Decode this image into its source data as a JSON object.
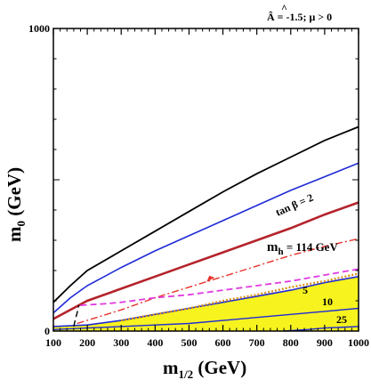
{
  "chart_data": {
    "type": "line",
    "title": "Â = -1.5; μ > 0",
    "title_hat": "^",
    "xlabel_main": "m",
    "xlabel_sub": "1/2",
    "xlabel_unit": " (GeV)",
    "ylabel_main": "m",
    "ylabel_sub": "0",
    "ylabel_unit": " (GeV)",
    "xlim": [
      100,
      1000
    ],
    "ylim": [
      0,
      1000
    ],
    "x_ticks": [
      "100",
      "200",
      "300",
      "400",
      "500",
      "600",
      "700",
      "800",
      "900",
      "1000"
    ],
    "y_ticks": [
      "0",
      "1000"
    ],
    "grid": false,
    "series": [
      {
        "color": "#000000",
        "style": "solid",
        "width": 1.8,
        "points": [
          [
            100,
            95
          ],
          [
            150,
            150
          ],
          [
            200,
            200
          ],
          [
            300,
            265
          ],
          [
            400,
            330
          ],
          [
            500,
            395
          ],
          [
            600,
            460
          ],
          [
            700,
            520
          ],
          [
            800,
            575
          ],
          [
            900,
            630
          ],
          [
            1000,
            675
          ]
        ]
      },
      {
        "color": "#1f2bd6",
        "style": "solid",
        "width": 1.6,
        "points": [
          [
            100,
            60
          ],
          [
            150,
            110
          ],
          [
            200,
            150
          ],
          [
            300,
            210
          ],
          [
            400,
            265
          ],
          [
            500,
            315
          ],
          [
            600,
            365
          ],
          [
            700,
            415
          ],
          [
            800,
            465
          ],
          [
            900,
            510
          ],
          [
            1000,
            555
          ]
        ]
      },
      {
        "color": "#b5232b",
        "style": "solid",
        "width": 2.6,
        "points": [
          [
            100,
            40
          ],
          [
            200,
            100
          ],
          [
            300,
            140
          ],
          [
            400,
            180
          ],
          [
            500,
            220
          ],
          [
            600,
            260
          ],
          [
            700,
            300
          ],
          [
            800,
            340
          ],
          [
            900,
            385
          ],
          [
            1000,
            425
          ]
        ]
      },
      {
        "color": "#e8322b",
        "style": "dashdot",
        "width": 1.4,
        "points": [
          [
            170,
            25
          ],
          [
            300,
            70
          ],
          [
            400,
            110
          ],
          [
            500,
            145
          ],
          [
            600,
            180
          ],
          [
            700,
            215
          ],
          [
            800,
            250
          ],
          [
            900,
            280
          ],
          [
            1000,
            305
          ]
        ]
      },
      {
        "color": "#e03ae0",
        "style": "dashed",
        "width": 1.8,
        "points": [
          [
            180,
            85
          ],
          [
            250,
            90
          ],
          [
            300,
            95
          ],
          [
            400,
            110
          ],
          [
            500,
            120
          ],
          [
            600,
            135
          ],
          [
            700,
            150
          ],
          [
            800,
            165
          ],
          [
            900,
            185
          ],
          [
            1000,
            205
          ]
        ]
      },
      {
        "color": "#d9951a",
        "style": "dotted",
        "width": 2.4,
        "points": [
          [
            300,
            35
          ],
          [
            400,
            55
          ],
          [
            500,
            75
          ],
          [
            600,
            100
          ],
          [
            700,
            120
          ],
          [
            800,
            145
          ],
          [
            900,
            165
          ],
          [
            1000,
            190
          ]
        ]
      },
      {
        "color": "#000000",
        "style": "dashed",
        "width": 1.4,
        "points": [
          [
            160,
            15
          ],
          [
            165,
            40
          ],
          [
            170,
            60
          ],
          [
            175,
            85
          ]
        ]
      }
    ],
    "region": {
      "color": "#f7f31f",
      "upper": [
        [
          100,
          15
        ],
        [
          200,
          20
        ],
        [
          300,
          35
        ],
        [
          400,
          55
        ],
        [
          500,
          75
        ],
        [
          600,
          95
        ],
        [
          700,
          115
        ],
        [
          800,
          135
        ],
        [
          900,
          160
        ],
        [
          1000,
          180
        ]
      ],
      "lower": [
        [
          1000,
          0
        ],
        [
          100,
          0
        ]
      ]
    },
    "tan_beta_lines": [
      {
        "color": "#1f2bd6",
        "width": 1.6,
        "points": [
          [
            100,
            15
          ],
          [
            200,
            20
          ],
          [
            300,
            35
          ],
          [
            400,
            55
          ],
          [
            500,
            75
          ],
          [
            600,
            95
          ],
          [
            700,
            115
          ],
          [
            800,
            135
          ],
          [
            900,
            160
          ],
          [
            1000,
            180
          ]
        ]
      },
      {
        "color": "#1f2bd6",
        "width": 1.4,
        "points": [
          [
            100,
            5
          ],
          [
            200,
            10
          ],
          [
            300,
            15
          ],
          [
            400,
            20
          ],
          [
            500,
            25
          ],
          [
            600,
            35
          ],
          [
            700,
            45
          ],
          [
            800,
            55
          ],
          [
            900,
            65
          ],
          [
            1000,
            75
          ]
        ]
      },
      {
        "color": "#1f2bd6",
        "width": 1.4,
        "points": [
          [
            780,
            0
          ],
          [
            850,
            5
          ],
          [
            900,
            10
          ],
          [
            1000,
            15
          ]
        ]
      }
    ],
    "annotations": {
      "tanbeta_prefix": "tan ",
      "tanbeta_symbol": "β",
      "tanbeta_value": " = 2",
      "mh_main": "m",
      "mh_sub": "h",
      "mh_value": "  = 114 GeV",
      "label_5": "5",
      "label_10": "10",
      "label_25": "25"
    }
  }
}
